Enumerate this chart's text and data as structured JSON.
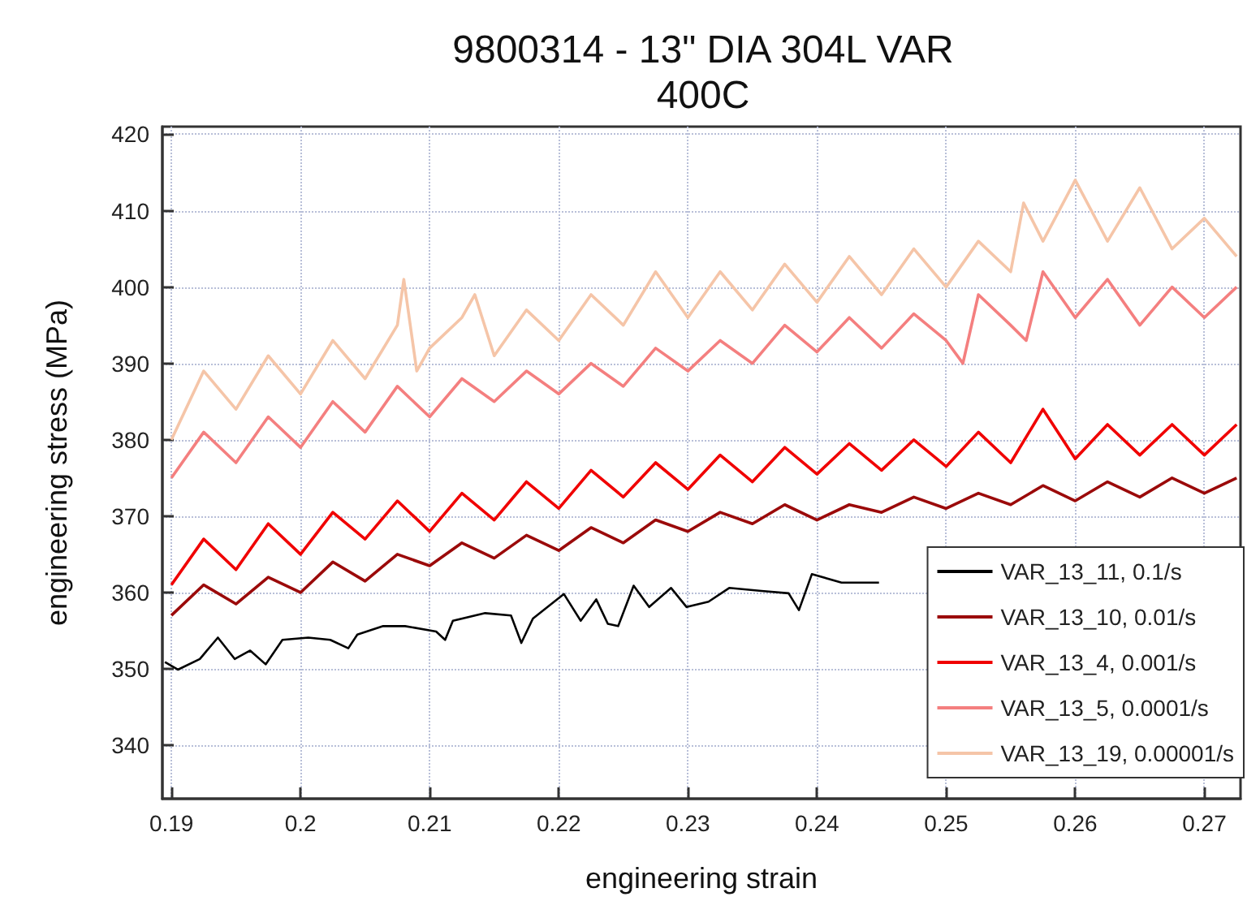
{
  "chart_data": {
    "type": "line",
    "title": "9800314 - 13\" DIA 304L VAR\n400C",
    "xlabel": "engineering strain",
    "ylabel": "engineering stress (MPa)",
    "xlim": [
      0.1893,
      0.2728
    ],
    "ylim": [
      333,
      421
    ],
    "xticks": [
      0.19,
      0.2,
      0.21,
      0.22,
      0.23,
      0.24,
      0.25,
      0.26,
      0.27
    ],
    "yticks": [
      340,
      350,
      360,
      370,
      380,
      390,
      400,
      410,
      420
    ],
    "grid": true,
    "legend": "bottom right",
    "marker": "none",
    "line_style": "solid",
    "series": [
      {
        "name": "VAR_13_11, 0.1/s",
        "color": "#000000",
        "x": [
          0.1895,
          0.1905,
          0.1922,
          0.1936,
          0.1949,
          0.1961,
          0.1973,
          0.1986,
          0.2006,
          0.2023,
          0.2037,
          0.2044,
          0.2064,
          0.2081,
          0.2105,
          0.2112,
          0.2118,
          0.2143,
          0.2163,
          0.2171,
          0.218,
          0.2204,
          0.2217,
          0.2229,
          0.2238,
          0.2246,
          0.2258,
          0.227,
          0.2287,
          0.2299,
          0.2316,
          0.2332,
          0.2357,
          0.2378,
          0.2386,
          0.2396,
          0.2419,
          0.2448
        ],
        "values": [
          350.9,
          349.9,
          351.3,
          354.1,
          351.3,
          352.4,
          350.6,
          353.8,
          354.1,
          353.8,
          352.7,
          354.5,
          355.6,
          355.6,
          354.9,
          353.8,
          356.3,
          357.3,
          357.0,
          353.4,
          356.6,
          359.8,
          356.3,
          359.1,
          355.9,
          355.6,
          360.9,
          358.1,
          360.6,
          358.1,
          358.8,
          360.6,
          360.2,
          359.9,
          357.7,
          362.4,
          361.3,
          361.3
        ]
      },
      {
        "name": "VAR_13_10, 0.01/s",
        "color": "#9b0a0a",
        "x": [
          0.19,
          0.1925,
          0.195,
          0.1975,
          0.2,
          0.2025,
          0.205,
          0.2075,
          0.21,
          0.2125,
          0.215,
          0.2175,
          0.22,
          0.2225,
          0.225,
          0.2275,
          0.23,
          0.2325,
          0.235,
          0.2375,
          0.24,
          0.2425,
          0.245,
          0.2475,
          0.25,
          0.2525,
          0.255,
          0.2575,
          0.26,
          0.2625,
          0.265,
          0.2675,
          0.27,
          0.2725
        ],
        "values": [
          357,
          361,
          358.5,
          362,
          360,
          364,
          361.5,
          365,
          363.5,
          366.5,
          364.5,
          367.5,
          365.5,
          368.5,
          366.5,
          369.5,
          368,
          370.5,
          369,
          371.5,
          369.5,
          371.5,
          370.5,
          372.5,
          371,
          373,
          371.5,
          374,
          372,
          374.5,
          372.5,
          375,
          373,
          375
        ]
      },
      {
        "name": "VAR_13_4, 0.001/s",
        "color": "#f00000",
        "x": [
          0.19,
          0.1925,
          0.195,
          0.1975,
          0.2,
          0.2025,
          0.205,
          0.2075,
          0.21,
          0.2125,
          0.215,
          0.2175,
          0.22,
          0.2225,
          0.225,
          0.2275,
          0.23,
          0.2325,
          0.235,
          0.2375,
          0.24,
          0.2425,
          0.245,
          0.2475,
          0.25,
          0.2525,
          0.255,
          0.2575,
          0.26,
          0.2625,
          0.265,
          0.2675,
          0.27,
          0.2725
        ],
        "values": [
          361,
          367,
          363,
          369,
          365,
          370.5,
          367,
          372,
          368,
          373,
          369.5,
          374.5,
          371,
          376,
          372.5,
          377,
          373.5,
          378,
          374.5,
          379,
          375.5,
          379.5,
          376,
          380,
          376.5,
          381,
          377,
          384,
          377.5,
          382,
          378,
          382,
          378,
          382
        ]
      },
      {
        "name": "VAR_13_5, 0.0001/s",
        "color": "#f47f7f",
        "x": [
          0.19,
          0.1925,
          0.195,
          0.1975,
          0.2,
          0.2025,
          0.205,
          0.2075,
          0.21,
          0.2125,
          0.215,
          0.2175,
          0.22,
          0.2225,
          0.225,
          0.2275,
          0.23,
          0.2325,
          0.235,
          0.2375,
          0.24,
          0.2425,
          0.245,
          0.2475,
          0.25,
          0.2513,
          0.2525,
          0.255,
          0.2562,
          0.2575,
          0.26,
          0.2625,
          0.265,
          0.2675,
          0.27,
          0.2725
        ],
        "values": [
          375,
          381,
          377,
          383,
          379,
          385,
          381,
          387,
          383,
          388,
          385,
          389,
          386,
          390,
          387,
          392,
          389,
          393,
          390,
          395,
          391.5,
          396,
          392,
          396.5,
          393,
          390,
          399,
          395,
          393,
          402,
          396,
          401,
          395,
          400,
          396,
          400
        ]
      },
      {
        "name": "VAR_13_19, 0.00001/s",
        "color": "#f5c5a8",
        "x": [
          0.19,
          0.1925,
          0.195,
          0.1975,
          0.2,
          0.2025,
          0.205,
          0.2075,
          0.208,
          0.209,
          0.21,
          0.2125,
          0.2135,
          0.215,
          0.2175,
          0.22,
          0.2225,
          0.225,
          0.2275,
          0.23,
          0.2325,
          0.235,
          0.2375,
          0.24,
          0.2425,
          0.245,
          0.2475,
          0.25,
          0.2525,
          0.255,
          0.256,
          0.2575,
          0.26,
          0.2625,
          0.265,
          0.2675,
          0.27,
          0.2725
        ],
        "values": [
          380,
          389,
          384,
          391,
          386,
          393,
          388,
          395,
          401,
          389,
          392,
          396,
          399,
          391,
          397,
          393,
          399,
          395,
          402,
          396,
          402,
          397,
          403,
          398,
          404,
          399,
          405,
          400,
          406,
          402,
          411,
          406,
          414,
          406,
          413,
          405,
          409,
          404
        ]
      }
    ]
  }
}
